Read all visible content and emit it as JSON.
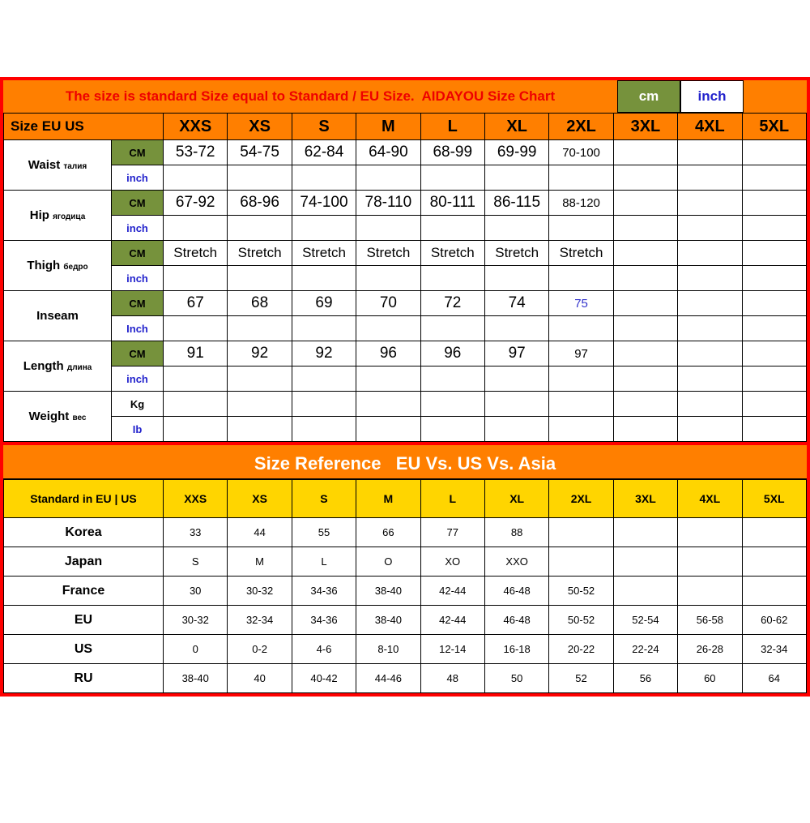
{
  "colors": {
    "orange": "#FF7F00",
    "title_red": "#EE0000",
    "frame_red": "#FF0000",
    "olive_green": "#76923C",
    "blue": "#2222CC",
    "yellow": "#FFD500",
    "black": "#000000",
    "white": "#FFFFFF"
  },
  "chart_data": [
    {
      "type": "table",
      "title": "The size is standard Size equal to Standard / EU Size.  AIDAYOU Size Chart",
      "unit_toggle": [
        "cm",
        "inch"
      ],
      "corner_label": "Size EU US",
      "columns": [
        "XXS",
        "XS",
        "S",
        "M",
        "L",
        "XL",
        "2XL",
        "3XL",
        "4XL",
        "5XL"
      ],
      "measurements": [
        {
          "label": "Waist",
          "note": "талия",
          "unit_top": "CM",
          "unit_bottom": "inch",
          "top": [
            "53-72",
            "54-75",
            "62-84",
            "64-90",
            "68-99",
            "69-99",
            "70-100",
            "",
            "",
            ""
          ],
          "bottom": [
            "",
            "",
            "",
            "",
            "",
            "",
            "",
            "",
            "",
            ""
          ]
        },
        {
          "label": "Hip",
          "note": "ягодица",
          "unit_top": "CM",
          "unit_bottom": "inch",
          "top": [
            "67-92",
            "68-96",
            "74-100",
            "78-110",
            "80-111",
            "86-115",
            "88-120",
            "",
            "",
            ""
          ],
          "bottom": [
            "",
            "",
            "",
            "",
            "",
            "",
            "",
            "",
            "",
            ""
          ]
        },
        {
          "label": "Thigh",
          "note": "бедро",
          "unit_top": "CM",
          "unit_bottom": "inch",
          "top": [
            "Stretch",
            "Stretch",
            "Stretch",
            "Stretch",
            "Stretch",
            "Stretch",
            "Stretch",
            "",
            "",
            ""
          ],
          "bottom": [
            "",
            "",
            "",
            "",
            "",
            "",
            "",
            "",
            "",
            ""
          ]
        },
        {
          "label": "Inseam",
          "note": "",
          "unit_top": "CM",
          "unit_bottom": "Inch",
          "top": [
            "67",
            "68",
            "69",
            "70",
            "72",
            "74",
            "75",
            "",
            "",
            ""
          ],
          "bottom": [
            "",
            "",
            "",
            "",
            "",
            "",
            "",
            "",
            "",
            ""
          ]
        },
        {
          "label": "Length",
          "note": "длина",
          "unit_top": "CM",
          "unit_bottom": "inch",
          "top": [
            "91",
            "92",
            "92",
            "96",
            "96",
            "97",
            "97",
            "",
            "",
            ""
          ],
          "bottom": [
            "",
            "",
            "",
            "",
            "",
            "",
            "",
            "",
            "",
            ""
          ]
        },
        {
          "label": "Weight",
          "note": "вес",
          "unit_top": "Kg",
          "unit_bottom": "Ib",
          "top": [
            "",
            "",
            "",
            "",
            "",
            "",
            "",
            "",
            "",
            ""
          ],
          "bottom": [
            "",
            "",
            "",
            "",
            "",
            "",
            "",
            "",
            "",
            ""
          ]
        }
      ]
    },
    {
      "type": "table",
      "title": "Size Reference   EU Vs. US Vs. Asia",
      "corner_label": "Standard in EU | US",
      "columns": [
        "XXS",
        "XS",
        "S",
        "M",
        "L",
        "XL",
        "2XL",
        "3XL",
        "4XL",
        "5XL"
      ],
      "rows": [
        {
          "label": "Korea",
          "values": [
            "33",
            "44",
            "55",
            "66",
            "77",
            "88",
            "",
            "",
            "",
            ""
          ]
        },
        {
          "label": "Japan",
          "values": [
            "S",
            "M",
            "L",
            "O",
            "XO",
            "XXO",
            "",
            "",
            "",
            ""
          ]
        },
        {
          "label": "France",
          "values": [
            "30",
            "30-32",
            "34-36",
            "38-40",
            "42-44",
            "46-48",
            "50-52",
            "",
            "",
            ""
          ]
        },
        {
          "label": "EU",
          "values": [
            "30-32",
            "32-34",
            "34-36",
            "38-40",
            "42-44",
            "46-48",
            "50-52",
            "52-54",
            "56-58",
            "60-62"
          ]
        },
        {
          "label": "US",
          "values": [
            "0",
            "0-2",
            "4-6",
            "8-10",
            "12-14",
            "16-18",
            "20-22",
            "22-24",
            "26-28",
            "32-34"
          ]
        },
        {
          "label": "RU",
          "values": [
            "38-40",
            "40",
            "40-42",
            "44-46",
            "48",
            "50",
            "52",
            "56",
            "60",
            "64"
          ]
        }
      ]
    }
  ]
}
